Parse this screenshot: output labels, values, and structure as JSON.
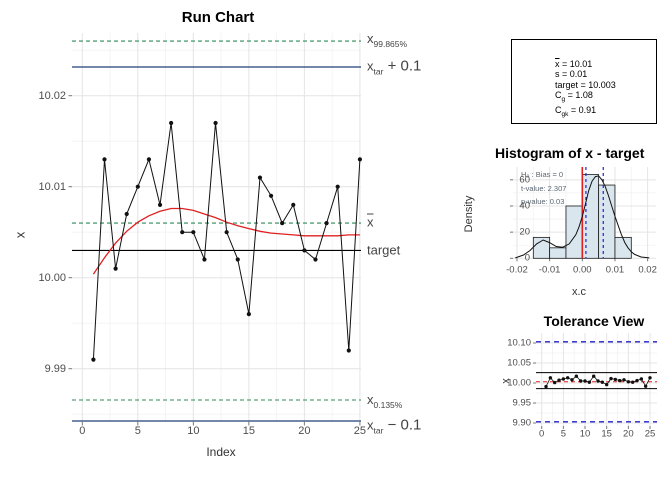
{
  "colors": {
    "quantile_line": "#2e8b57",
    "tolerance_line_navy": "#203e77",
    "smoother_red": "#e02020",
    "tolerance_blue": "#2222cc",
    "bar_fill": "#d9e6ee",
    "grid_major": "#e4e4e4",
    "grid_minor": "#f2f2f2",
    "tick_text": "#4d4d4d"
  },
  "stats_box": {
    "lines": [
      {
        "base": "x",
        "overbar": true,
        "sub": "",
        "rest": " = 10.01"
      },
      {
        "base": "s",
        "overbar": false,
        "sub": "",
        "rest": " = 0.01"
      },
      {
        "base": "target",
        "overbar": false,
        "sub": "",
        "rest": " = 10.003"
      },
      {
        "base": "C",
        "overbar": false,
        "sub": "g",
        "rest": " = 1.08"
      },
      {
        "base": "C",
        "overbar": false,
        "sub": "gk",
        "rest": " = 0.91"
      }
    ]
  },
  "chart_data": [
    {
      "type": "line",
      "title": "Run Chart",
      "xlabel": "Index",
      "ylabel": "x",
      "x_ticks": [
        "0",
        "5",
        "10",
        "15",
        "20",
        "25"
      ],
      "x_tick_values": [
        0,
        5,
        10,
        15,
        20,
        25
      ],
      "y_ticks": [
        "10.02",
        "10.01",
        "10.00",
        "9.99"
      ],
      "y_tick_values": [
        10.02,
        10.01,
        10.0,
        9.99
      ],
      "x": [
        1,
        2,
        3,
        4,
        5,
        6,
        7,
        8,
        9,
        10,
        11,
        12,
        13,
        14,
        15,
        16,
        17,
        18,
        19,
        20,
        21,
        22,
        23,
        24,
        25
      ],
      "values": [
        9.991,
        10.013,
        10.001,
        10.007,
        10.01,
        10.013,
        10.008,
        10.017,
        10.005,
        10.005,
        10.002,
        10.017,
        10.005,
        10.002,
        9.996,
        10.011,
        10.009,
        10.006,
        10.008,
        10.003,
        10.002,
        10.006,
        10.01,
        9.992,
        10.013
      ],
      "ref_lines": {
        "x_99_865_pct": 10.026,
        "x_0_135_pct": 9.986,
        "mean": 10.006,
        "target": 10.003,
        "tolerance_upper": 10.103,
        "tolerance_lower": 9.903
      },
      "line_labels": [
        {
          "base": "x",
          "sub": "99.865%",
          "suffix": "",
          "overbar": false
        },
        {
          "base": "x",
          "sub": "tar",
          "suffix": " + 0.1",
          "overbar": false
        },
        {
          "base": "x",
          "sub": "",
          "suffix": "",
          "overbar": true
        },
        {
          "base": "target",
          "sub": "",
          "suffix": "",
          "overbar": false
        },
        {
          "base": "x",
          "sub": "0.135%",
          "suffix": "",
          "overbar": false
        },
        {
          "base": "x",
          "sub": "tar",
          "suffix": " − 0.1",
          "overbar": false
        }
      ],
      "smoother": [
        [
          1,
          10.0004
        ],
        [
          2,
          10.0022
        ],
        [
          3,
          10.0038
        ],
        [
          4,
          10.0051
        ],
        [
          5,
          10.0061
        ],
        [
          6,
          10.0068
        ],
        [
          7,
          10.0073
        ],
        [
          8,
          10.0076
        ],
        [
          9,
          10.0076
        ],
        [
          10,
          10.0074
        ],
        [
          11,
          10.007
        ],
        [
          12,
          10.0066
        ],
        [
          13,
          10.0061
        ],
        [
          14,
          10.0057
        ],
        [
          15,
          10.0054
        ],
        [
          16,
          10.0051
        ],
        [
          17,
          10.0049
        ],
        [
          18,
          10.0048
        ],
        [
          19,
          10.0047
        ],
        [
          20,
          10.0046
        ],
        [
          21,
          10.0046
        ],
        [
          22,
          10.0046
        ],
        [
          23,
          10.0046
        ],
        [
          24,
          10.0047
        ],
        [
          25,
          10.0047
        ]
      ]
    },
    {
      "type": "histogram",
      "title": "Histogram of x - target",
      "xlabel": "x.c",
      "ylabel": "Density",
      "x_ticks": [
        "-0.02",
        "-0.01",
        "0.00",
        "0.01",
        "0.02"
      ],
      "x_tick_values": [
        -0.02,
        -0.01,
        0.0,
        0.01,
        0.02
      ],
      "y_ticks": [
        "0",
        "20",
        "40",
        "60"
      ],
      "y_tick_values": [
        0,
        20,
        40,
        60
      ],
      "bins": {
        "start": -0.015,
        "binwidth": 0.005,
        "densities": [
          16,
          8,
          40,
          64,
          56,
          16
        ],
        "counts": [
          2,
          1,
          5,
          8,
          7,
          2
        ]
      },
      "test_annotations": [
        "H₀ : Bias = 0",
        "t-value: 2.307",
        "p-value: 0.03"
      ],
      "ref_lines": {
        "bias_h0": 0.0,
        "conf_int": [
          0.0005,
          0.0058
        ]
      },
      "density_curve": [
        [
          -0.0205,
          0.3
        ],
        [
          -0.018,
          2.5
        ],
        [
          -0.016,
          6
        ],
        [
          -0.014,
          11
        ],
        [
          -0.012,
          14
        ],
        [
          -0.01,
          12
        ],
        [
          -0.008,
          9
        ],
        [
          -0.006,
          8.5
        ],
        [
          -0.004,
          11
        ],
        [
          -0.002,
          18
        ],
        [
          -0.001,
          24
        ],
        [
          0.0,
          32
        ],
        [
          0.001,
          42
        ],
        [
          0.002,
          52
        ],
        [
          0.003,
          59
        ],
        [
          0.004,
          62.5
        ],
        [
          0.005,
          63
        ],
        [
          0.006,
          60
        ],
        [
          0.007,
          55
        ],
        [
          0.008,
          48
        ],
        [
          0.009,
          40
        ],
        [
          0.01,
          32
        ],
        [
          0.011,
          25
        ],
        [
          0.012,
          18
        ],
        [
          0.013,
          12
        ],
        [
          0.014,
          8
        ],
        [
          0.015,
          5
        ],
        [
          0.016,
          3
        ],
        [
          0.018,
          1
        ],
        [
          0.0205,
          0.3
        ]
      ]
    },
    {
      "type": "scatter",
      "title": "Tolerance View",
      "xlabel": "",
      "ylabel": "x",
      "x_ticks": [
        "0",
        "5",
        "10",
        "15",
        "20",
        "25"
      ],
      "x_tick_values": [
        0,
        5,
        10,
        15,
        20,
        25
      ],
      "y_ticks": [
        "10.10",
        "10.05",
        "10.00",
        "9.95",
        "9.90"
      ],
      "y_tick_values": [
        10.1,
        10.05,
        10.0,
        9.95,
        9.9
      ],
      "x": [
        1,
        2,
        3,
        4,
        5,
        6,
        7,
        8,
        9,
        10,
        11,
        12,
        13,
        14,
        15,
        16,
        17,
        18,
        19,
        20,
        21,
        22,
        23,
        24,
        25
      ],
      "values": [
        9.991,
        10.013,
        10.001,
        10.007,
        10.01,
        10.013,
        10.008,
        10.017,
        10.005,
        10.005,
        10.002,
        10.017,
        10.005,
        10.002,
        9.996,
        10.011,
        10.009,
        10.006,
        10.008,
        10.003,
        10.002,
        10.006,
        10.01,
        9.992,
        10.013
      ],
      "ref_lines": {
        "tolerance_upper": 10.103,
        "tolerance_lower": 9.903,
        "limit_upper": 10.026,
        "limit_lower": 9.986,
        "target": 10.003
      }
    }
  ]
}
